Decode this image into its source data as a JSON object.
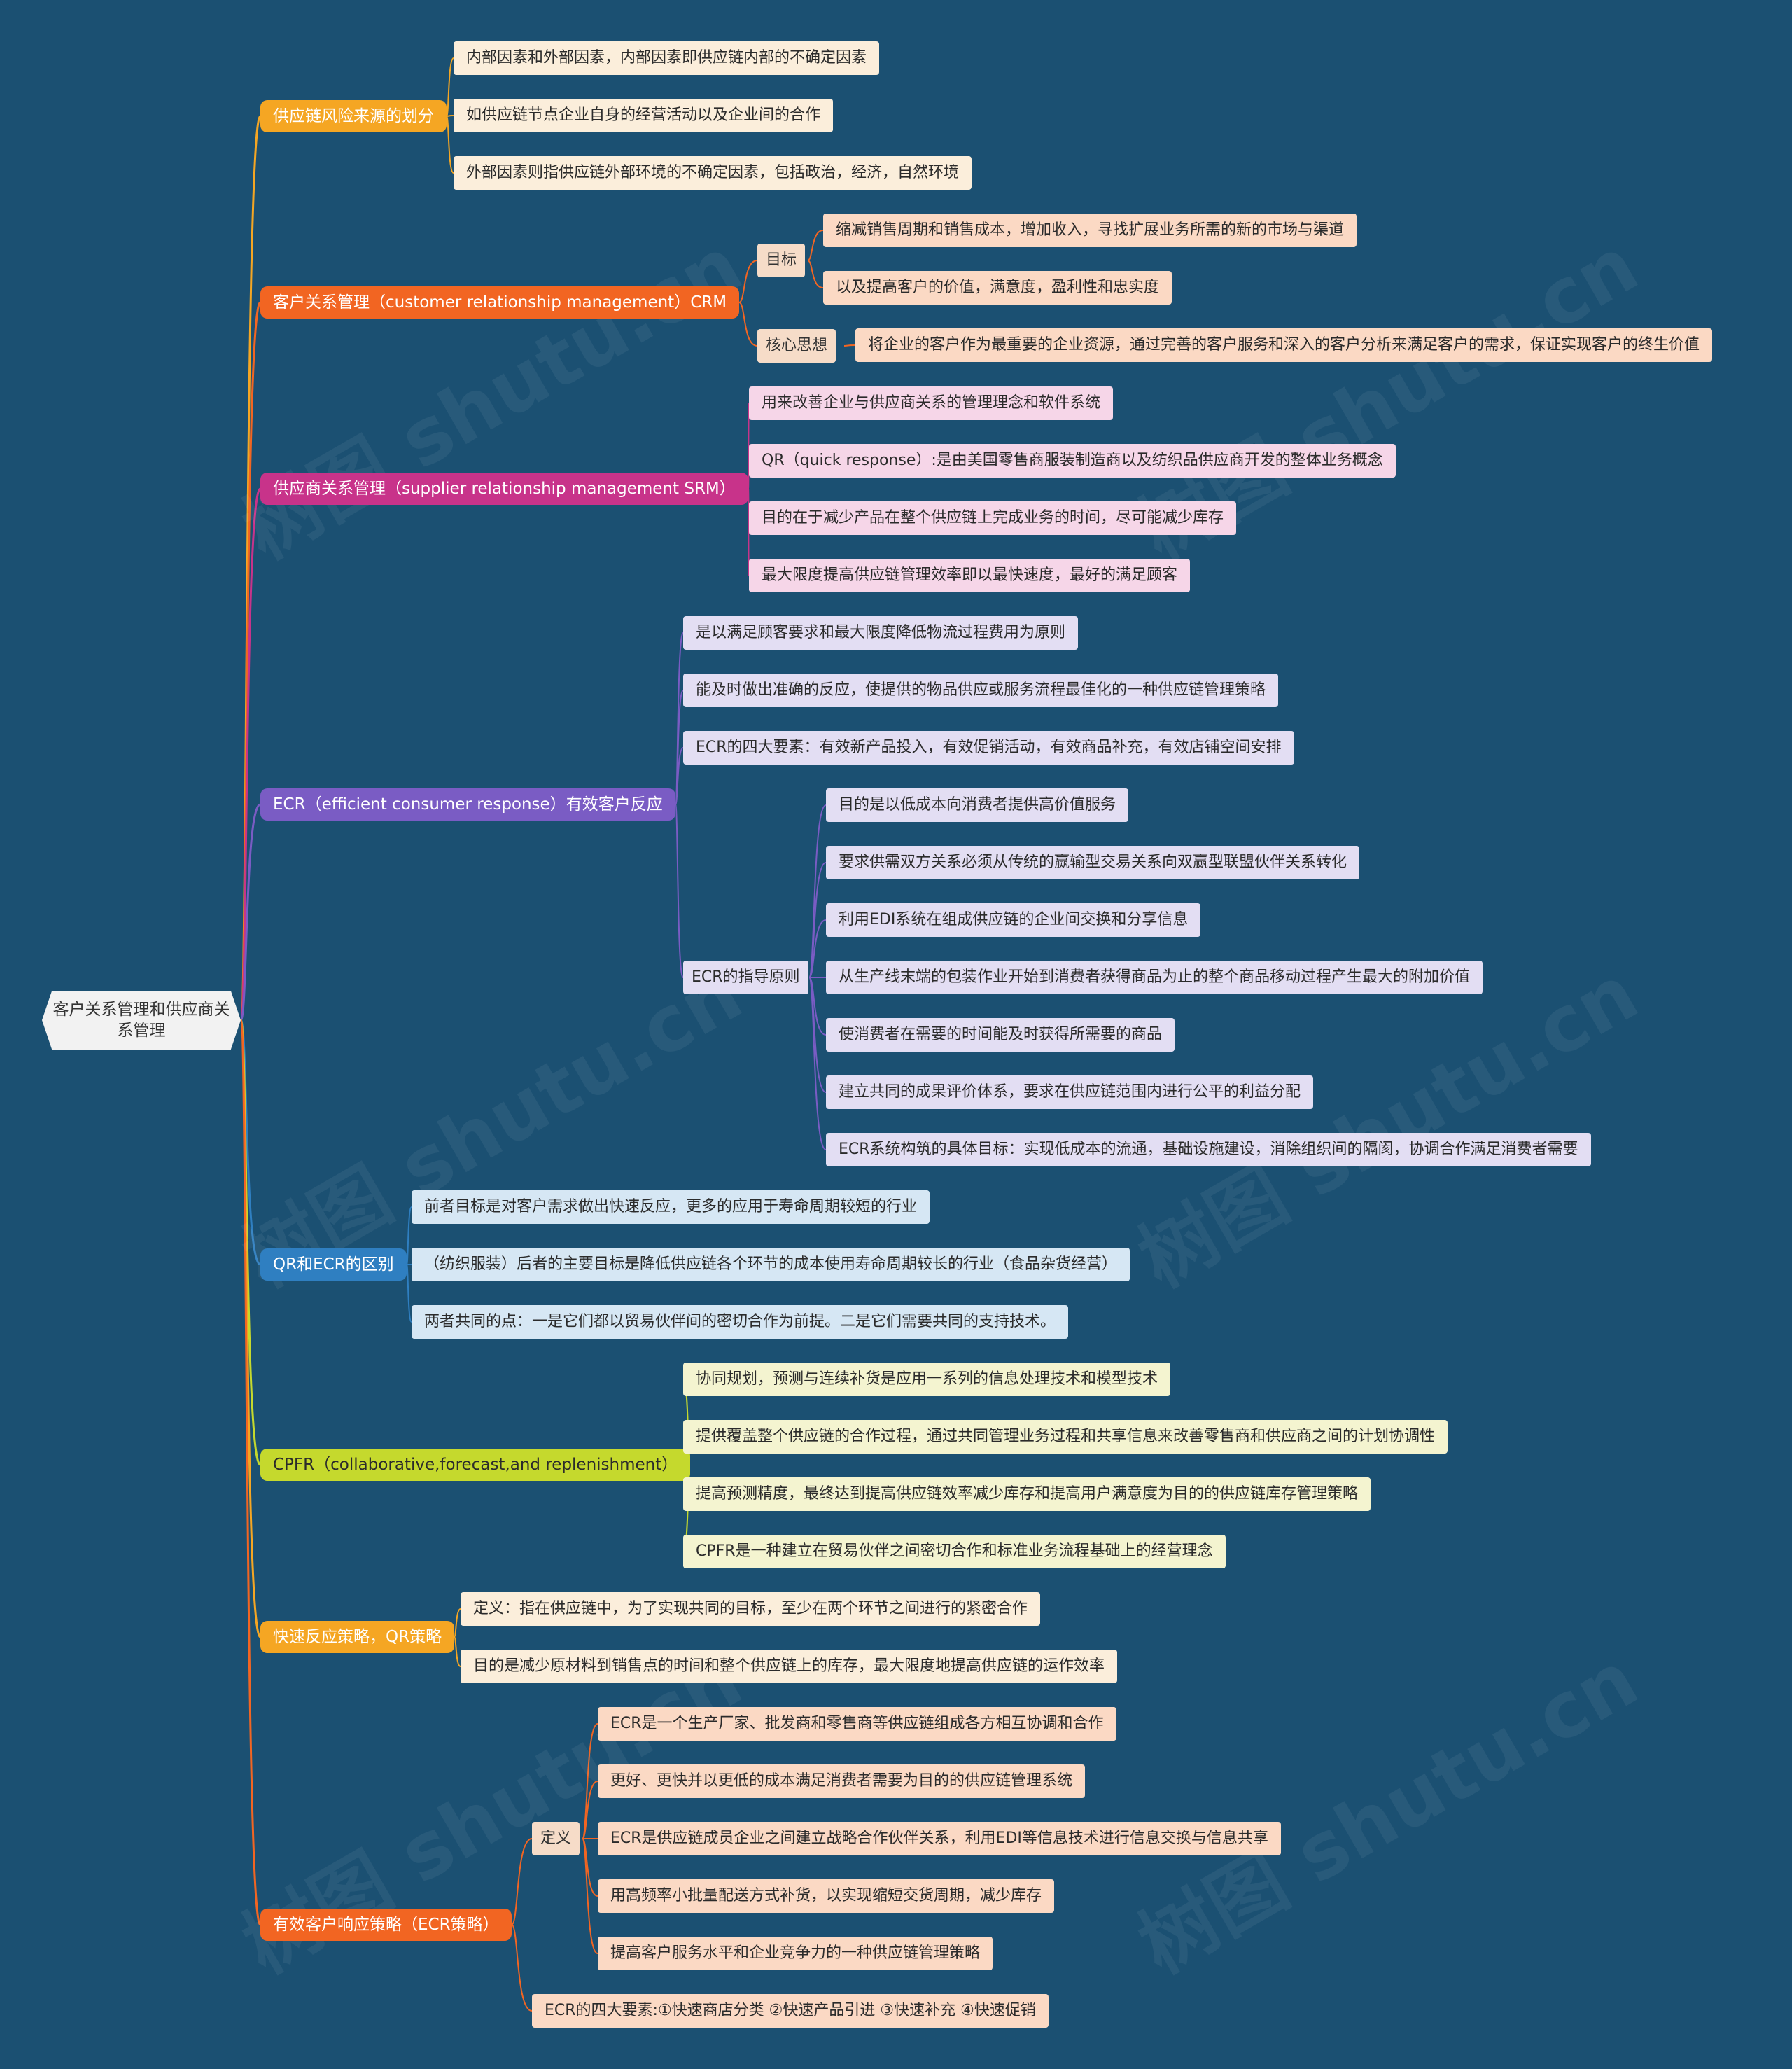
{
  "root": {
    "line1": "客户关系管理和供应商关",
    "line2": "系管理"
  },
  "watermarks": [
    "树图 shutu.cn",
    "树图 shutu.cn",
    "树图 shutu.cn",
    "树图 shutu.cn",
    "树图 shutu.cn",
    "树图 shutu.cn"
  ],
  "branches": [
    {
      "label": "供应链风险来源的划分",
      "color": "#f5a623",
      "children": [
        "内部因素和外部因素，内部因素即供应链内部的不确定因素",
        "如供应链节点企业自身的经营活动以及企业间的合作",
        "外部因素则指供应链外部环境的不确定因素，包括政治，经济，自然环境"
      ]
    },
    {
      "label": "客户关系管理（customer relationship management）CRM",
      "color": "#f26522",
      "groups": [
        {
          "label": "目标",
          "children": [
            "缩减销售周期和销售成本，增加收入，寻找扩展业务所需的新的市场与渠道",
            "以及提高客户的价值，满意度，盈利性和忠实度"
          ]
        },
        {
          "label": "核心思想",
          "children": [
            "将企业的客户作为最重要的企业资源，通过完善的客户服务和深入的客户分析来满足客户的需求，保证实现客户的终生价值"
          ]
        }
      ]
    },
    {
      "label": "供应商关系管理（supplier relationship management  SRM）",
      "color": "#c8338a",
      "children": [
        "用来改善企业与供应商关系的管理理念和软件系统",
        "QR（quick response）:是由美国零售商服装制造商以及纺织品供应商开发的整体业务概念",
        "目的在于减少产品在整个供应链上完成业务的时间，尽可能减少库存",
        "最大限度提高供应链管理效率即以最快速度，最好的满足顾客"
      ]
    },
    {
      "label": "ECR（efficient consumer response）有效客户反应",
      "color": "#7a5cc4",
      "children": [
        "是以满足顾客要求和最大限度降低物流过程费用为原则",
        "能及时做出准确的反应，使提供的物品供应或服务流程最佳化的一种供应链管理策略",
        "ECR的四大要素：有效新产品投入，有效促销活动，有效商品补充，有效店铺空间安排"
      ],
      "groups": [
        {
          "label": "ECR的指导原则",
          "children": [
            "目的是以低成本向消费者提供高价值服务",
            "要求供需双方关系必须从传统的赢输型交易关系向双赢型联盟伙伴关系转化",
            "利用EDI系统在组成供应链的企业间交换和分享信息",
            "从生产线末端的包装作业开始到消费者获得商品为止的整个商品移动过程产生最大的附加价值",
            "使消费者在需要的时间能及时获得所需要的商品",
            "建立共同的成果评价体系，要求在供应链范围内进行公平的利益分配",
            "ECR系统构筑的具体目标：实现低成本的流通，基础设施建设，消除组织间的隔阂，协调合作满足消费者需要"
          ]
        }
      ]
    },
    {
      "label": "QR和ECR的区别",
      "color": "#2f7fc1",
      "children": [
        "前者目标是对客户需求做出快速反应，更多的应用于寿命周期较短的行业",
        "（纺织服装）后者的主要目标是降低供应链各个环节的成本使用寿命周期较长的行业（食品杂货经营）",
        "两者共同的点：一是它们都以贸易伙伴间的密切合作为前提。二是它们需要共同的支持技术。"
      ]
    },
    {
      "label": "CPFR（collaborative,forecast,and replenishment）",
      "color": "#c5d92d",
      "children": [
        "协同规划，预测与连续补货是应用一系列的信息处理技术和模型技术",
        "提供覆盖整个供应链的合作过程，通过共同管理业务过程和共享信息来改善零售商和供应商之间的计划协调性",
        "提高预测精度，最终达到提高供应链效率减少库存和提高用户满意度为目的的供应链库存管理策略",
        "CPFR是一种建立在贸易伙伴之间密切合作和标准业务流程基础上的经营理念"
      ]
    },
    {
      "label": "快速反应策略，QR策略",
      "color": "#f5a623",
      "children": [
        "定义：指在供应链中，为了实现共同的目标，至少在两个环节之间进行的紧密合作",
        "目的是减少原材料到销售点的时间和整个供应链上的库存，最大限度地提高供应链的运作效率"
      ]
    },
    {
      "label": "有效客户响应策略（ECR策略）",
      "color": "#f26522",
      "groups": [
        {
          "label": "定义",
          "children": [
            "ECR是一个生产厂家、批发商和零售商等供应链组成各方相互协调和合作",
            "更好、更快并以更低的成本满足消费者需要为目的的供应链管理系统",
            "ECR是供应链成员企业之间建立战略合作伙伴关系，利用EDI等信息技术进行信息交换与信息共享",
            "用高频率小批量配送方式补货，以实现缩短交货周期，减少库存",
            "提高客户服务水平和企业竞争力的一种供应链管理策略"
          ]
        }
      ],
      "children": [
        "ECR的四大要素:①快速商店分类 ②快速产品引进 ③快速补充 ④快速促销"
      ]
    }
  ]
}
